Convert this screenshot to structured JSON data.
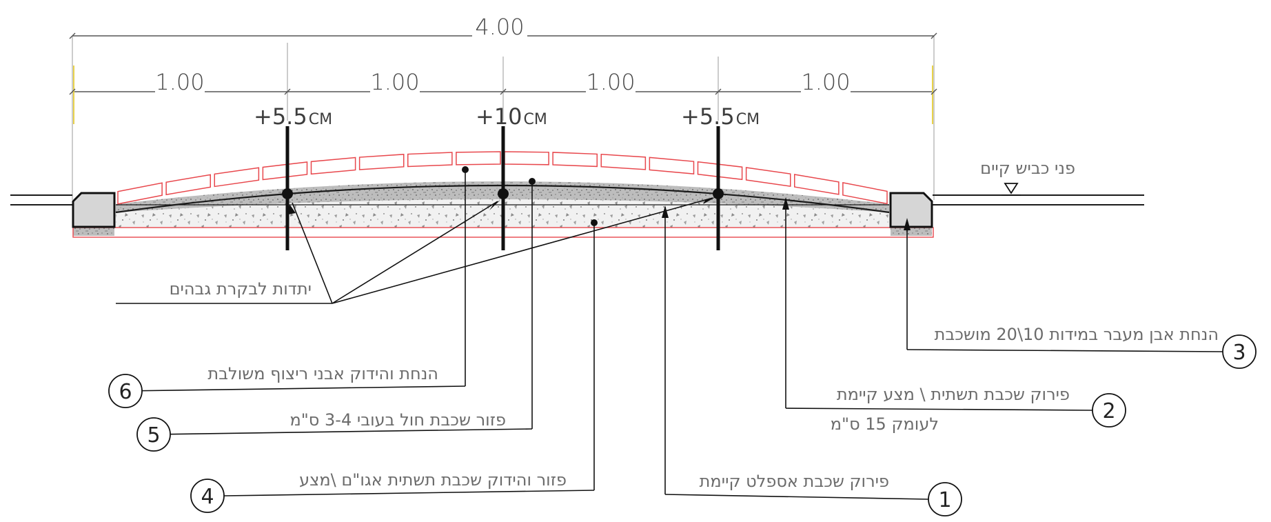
{
  "dimensions": {
    "overall": "4.00",
    "segments": [
      "1.00",
      "1.00",
      "1.00",
      "1.00"
    ]
  },
  "levels": {
    "left": {
      "value": "+5.5",
      "unit": "CM"
    },
    "center": {
      "value": "+10",
      "unit": "CM"
    },
    "right": {
      "value": "+5.5",
      "unit": "CM"
    }
  },
  "existing_road_label": "פני כביש קיים",
  "stakes_label": "יתדות לבקרת גבהים",
  "callouts": [
    {
      "number": "1",
      "line1": "פירוק שכבת אספלט קיימת",
      "line2": ""
    },
    {
      "number": "2",
      "line1": "פירוק שכבת תשתית \\ מצע קיימת",
      "line2": "לעומק 15 ס\"מ"
    },
    {
      "number": "3",
      "line1": "הנחת אבן מעבר במידות 10\\20 מושכבת",
      "line2": ""
    },
    {
      "number": "4",
      "line1": "פזור והידוק  שכבת תשתית אגו\"ם \\מצע",
      "line2": ""
    },
    {
      "number": "5",
      "line1": "פזור שכבת חול בעובי 3-4 ס\"מ",
      "line2": ""
    },
    {
      "number": "6",
      "line1": "הנחת והידוק אבני ריצוף משולבת",
      "line2": ""
    }
  ],
  "colors": {
    "pavers": "#e8474c",
    "line": "#1a1a1a",
    "curb_fill": "#d6d6d6",
    "guide": "#e8d24a"
  }
}
